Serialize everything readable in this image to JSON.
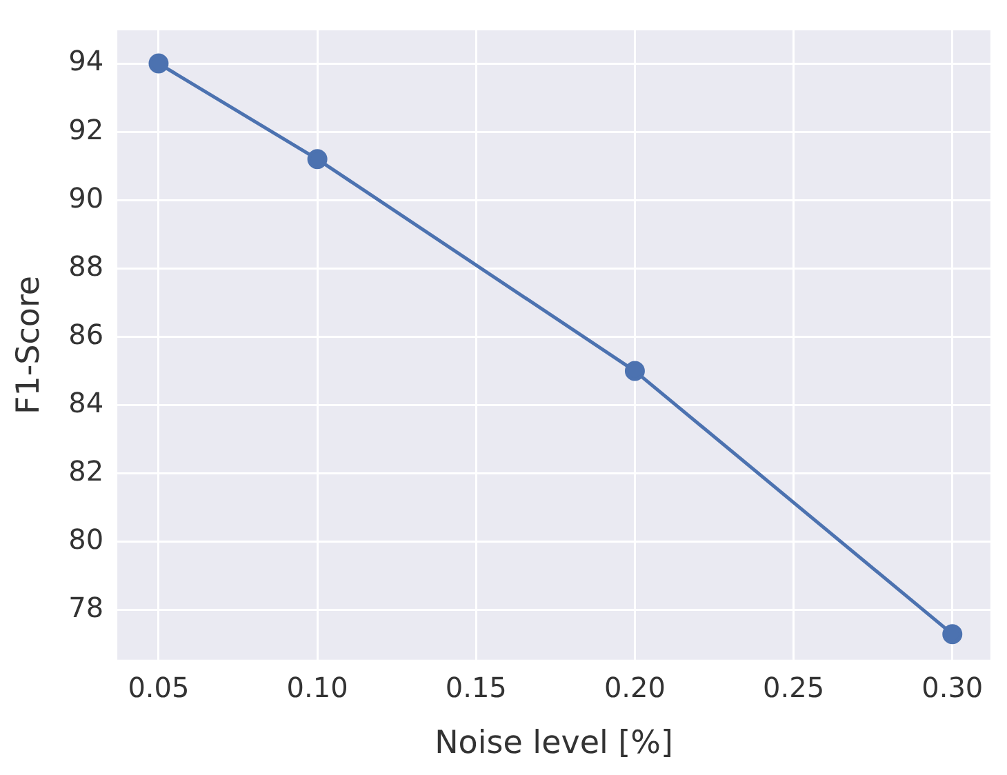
{
  "chart_data": {
    "type": "line",
    "xlabel": "Noise level [%]",
    "ylabel": "F1-Score",
    "x": [
      0.05,
      0.1,
      0.2,
      0.3
    ],
    "series": [
      {
        "color": "#4c72b0",
        "values": [
          94.0,
          91.2,
          85.0,
          77.3
        ]
      }
    ],
    "xlim": [
      0.037,
      0.312
    ],
    "xticks": [
      {
        "value": 0.05,
        "label": "0.05"
      },
      {
        "value": 0.1,
        "label": "0.10"
      },
      {
        "value": 0.15,
        "label": "0.15"
      },
      {
        "value": 0.2,
        "label": "0.20"
      },
      {
        "value": 0.25,
        "label": "0.25"
      },
      {
        "value": 0.3,
        "label": "0.30"
      }
    ],
    "ylim": [
      76.55,
      94.97
    ],
    "yticks": [
      78,
      80,
      82,
      84,
      86,
      88,
      90,
      92,
      94
    ],
    "grid": true,
    "legend": false,
    "marker": "circle",
    "line_style": "solid"
  }
}
